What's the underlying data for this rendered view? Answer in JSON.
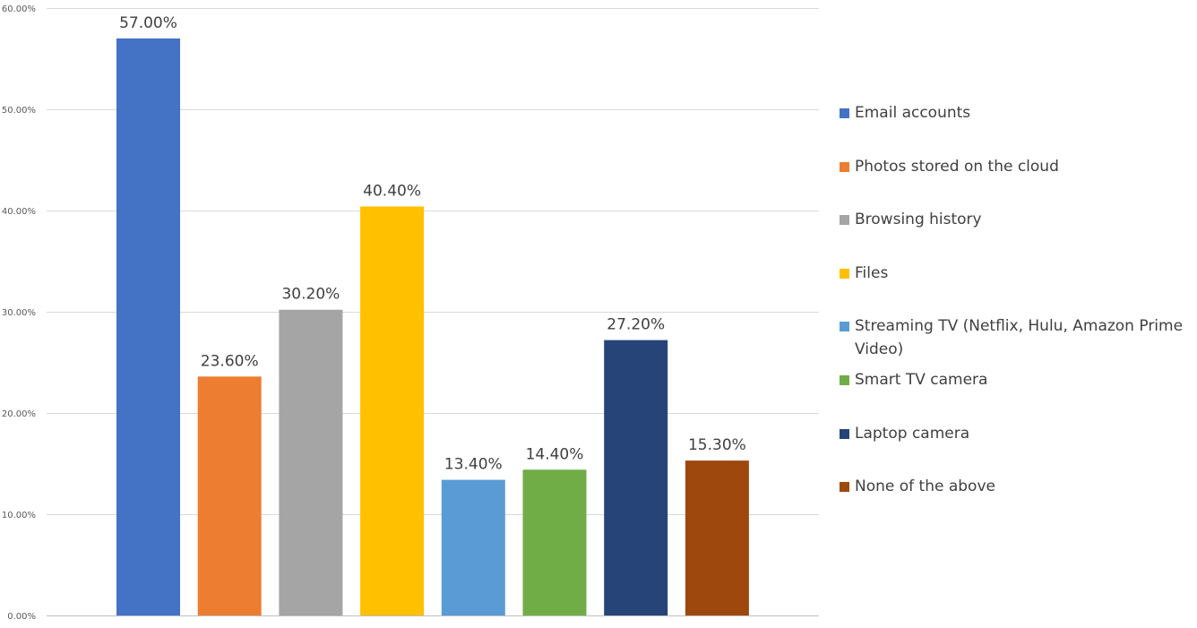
{
  "chart_data": {
    "type": "bar",
    "categories": [
      "Email accounts",
      "Photos stored on the cloud",
      "Browsing history",
      "Files",
      "Streaming TV (Netflix, Hulu, Amazon Prime Video)",
      "Smart TV camera",
      "Laptop camera",
      "None of the above"
    ],
    "values": [
      57.0,
      23.6,
      30.2,
      40.4,
      13.4,
      14.4,
      27.2,
      15.3
    ],
    "data_labels": [
      "57.00%",
      "23.60%",
      "30.20%",
      "40.40%",
      "13.40%",
      "14.40%",
      "27.20%",
      "15.30%"
    ],
    "colors": [
      "#4472C4",
      "#ED7D31",
      "#A5A5A5",
      "#FFC000",
      "#5B9BD5",
      "#70AD47",
      "#264478",
      "#9E480E"
    ],
    "ylim": [
      0,
      60
    ],
    "yticks": [
      0,
      10,
      20,
      30,
      40,
      50,
      60
    ],
    "ytick_labels": [
      "0.00%",
      "10.00%",
      "20.00%",
      "30.00%",
      "40.00%",
      "50.00%",
      "60.00%"
    ],
    "grid": true,
    "legend_position": "right",
    "title": "",
    "xlabel": "",
    "ylabel": ""
  }
}
